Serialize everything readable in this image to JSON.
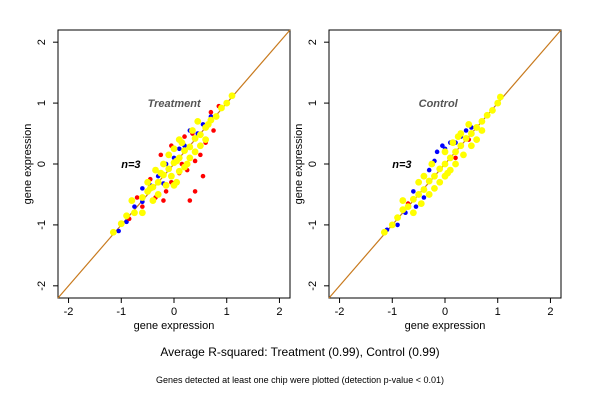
{
  "chart_data": [
    {
      "type": "scatter",
      "title": "Treatment",
      "annotation": "n=3",
      "xlabel": "gene expression",
      "ylabel": "gene expression",
      "xlim": [
        -2.2,
        2.2
      ],
      "ylim": [
        -2.2,
        2.2
      ],
      "xticks": [
        -2,
        -1,
        0,
        1,
        2
      ],
      "yticks": [
        -2,
        -1,
        0,
        1,
        2
      ],
      "reference_line": {
        "slope": 1,
        "intercept": 0,
        "color": "#c87a1e"
      },
      "series": [
        {
          "color": "#0000ff",
          "points": [
            [
              -1.05,
              -1.1
            ],
            [
              -0.9,
              -0.95
            ],
            [
              -0.75,
              -0.7
            ],
            [
              -0.6,
              -0.62
            ],
            [
              -0.45,
              -0.35
            ],
            [
              -0.3,
              -0.2
            ],
            [
              -0.2,
              -0.32
            ],
            [
              0.0,
              0.1
            ],
            [
              0.1,
              0.25
            ],
            [
              0.3,
              0.55
            ],
            [
              0.45,
              0.5
            ],
            [
              0.55,
              0.65
            ],
            [
              0.7,
              0.78
            ],
            [
              -0.6,
              -0.4
            ],
            [
              -0.15,
              0.0
            ],
            [
              0.2,
              0.3
            ]
          ]
        },
        {
          "color": "#ff0000",
          "points": [
            [
              -0.85,
              -0.9
            ],
            [
              -0.6,
              -0.7
            ],
            [
              -0.35,
              -0.55
            ],
            [
              -0.2,
              -0.6
            ],
            [
              -0.05,
              -0.3
            ],
            [
              0.1,
              -0.15
            ],
            [
              0.25,
              -0.1
            ],
            [
              0.4,
              0.05
            ],
            [
              0.5,
              0.15
            ],
            [
              0.55,
              -0.2
            ],
            [
              0.4,
              -0.45
            ],
            [
              0.2,
              0.45
            ],
            [
              -0.05,
              0.3
            ],
            [
              -0.25,
              0.15
            ],
            [
              0.7,
              0.85
            ],
            [
              0.85,
              0.95
            ],
            [
              0.6,
              0.35
            ],
            [
              -0.45,
              -0.25
            ],
            [
              0.3,
              -0.6
            ],
            [
              -0.7,
              -0.55
            ],
            [
              0.75,
              0.55
            ],
            [
              0.35,
              0.5
            ],
            [
              -0.15,
              -0.45
            ],
            [
              0.15,
              0.0
            ]
          ]
        },
        {
          "color": "#ffff00",
          "points": [
            [
              -1.15,
              -1.12
            ],
            [
              -1.0,
              -0.98
            ],
            [
              -0.9,
              -0.85
            ],
            [
              -0.75,
              -0.8
            ],
            [
              -0.6,
              -0.55
            ],
            [
              -0.5,
              -0.45
            ],
            [
              -0.4,
              -0.38
            ],
            [
              -0.3,
              -0.3
            ],
            [
              -0.2,
              -0.18
            ],
            [
              -0.1,
              -0.08
            ],
            [
              0.0,
              0.02
            ],
            [
              0.1,
              0.1
            ],
            [
              0.2,
              0.22
            ],
            [
              0.3,
              0.28
            ],
            [
              0.4,
              0.42
            ],
            [
              0.5,
              0.48
            ],
            [
              0.6,
              0.6
            ],
            [
              0.7,
              0.72
            ],
            [
              0.8,
              0.78
            ],
            [
              0.9,
              0.92
            ],
            [
              1.0,
              1.0
            ],
            [
              1.1,
              1.12
            ],
            [
              -0.5,
              -0.3
            ],
            [
              -0.3,
              -0.5
            ],
            [
              -0.1,
              0.15
            ],
            [
              0.1,
              -0.12
            ],
            [
              0.3,
              0.1
            ],
            [
              0.15,
              0.35
            ],
            [
              0.5,
              0.3
            ],
            [
              0.35,
              0.55
            ],
            [
              -0.15,
              -0.35
            ],
            [
              -0.35,
              -0.1
            ],
            [
              0.05,
              -0.3
            ],
            [
              0.0,
              -0.35
            ],
            [
              -0.2,
              0.0
            ],
            [
              0.25,
              0.0
            ],
            [
              0.4,
              0.2
            ],
            [
              -0.6,
              -0.8
            ],
            [
              -0.8,
              -0.6
            ],
            [
              0.0,
              0.25
            ],
            [
              0.6,
              0.4
            ],
            [
              0.45,
              0.7
            ],
            [
              -0.4,
              -0.6
            ],
            [
              0.1,
              0.4
            ],
            [
              -0.05,
              -0.2
            ],
            [
              0.2,
              -0.05
            ],
            [
              0.05,
              0.05
            ],
            [
              -0.25,
              -0.15
            ],
            [
              -0.45,
              -0.4
            ],
            [
              0.65,
              0.65
            ]
          ]
        }
      ]
    },
    {
      "type": "scatter",
      "title": "Control",
      "annotation": "n=3",
      "xlabel": "gene expression",
      "ylabel": "gene expression",
      "xlim": [
        -2.2,
        2.2
      ],
      "ylim": [
        -2.2,
        2.2
      ],
      "xticks": [
        -2,
        -1,
        0,
        1,
        2
      ],
      "yticks": [
        -2,
        -1,
        0,
        1,
        2
      ],
      "reference_line": {
        "slope": 1,
        "intercept": 0,
        "color": "#c87a1e"
      },
      "series": [
        {
          "color": "#0000ff",
          "points": [
            [
              -1.1,
              -1.08
            ],
            [
              -0.9,
              -1.0
            ],
            [
              -0.75,
              -0.8
            ],
            [
              -0.55,
              -0.7
            ],
            [
              -0.4,
              -0.55
            ],
            [
              -0.3,
              -0.1
            ],
            [
              -0.2,
              0.05
            ],
            [
              0.0,
              0.25
            ],
            [
              0.1,
              0.35
            ],
            [
              0.3,
              0.45
            ],
            [
              -0.15,
              0.2
            ],
            [
              0.5,
              0.6
            ],
            [
              0.2,
              0.35
            ],
            [
              -0.05,
              0.3
            ],
            [
              0.4,
              0.55
            ],
            [
              -0.6,
              -0.45
            ]
          ]
        },
        {
          "color": "#ff0000",
          "points": [
            [
              -0.7,
              -0.65
            ],
            [
              0.2,
              0.1
            ],
            [
              0.45,
              0.4
            ]
          ]
        },
        {
          "color": "#ffff00",
          "points": [
            [
              -1.15,
              -1.12
            ],
            [
              -1.0,
              -1.0
            ],
            [
              -0.9,
              -0.88
            ],
            [
              -0.8,
              -0.75
            ],
            [
              -0.7,
              -0.7
            ],
            [
              -0.6,
              -0.58
            ],
            [
              -0.5,
              -0.5
            ],
            [
              -0.4,
              -0.42
            ],
            [
              -0.3,
              -0.28
            ],
            [
              -0.2,
              -0.2
            ],
            [
              -0.1,
              -0.08
            ],
            [
              0.0,
              0.0
            ],
            [
              0.1,
              0.1
            ],
            [
              0.2,
              0.2
            ],
            [
              0.3,
              0.3
            ],
            [
              0.4,
              0.42
            ],
            [
              0.5,
              0.5
            ],
            [
              0.6,
              0.6
            ],
            [
              0.7,
              0.7
            ],
            [
              0.8,
              0.8
            ],
            [
              0.9,
              0.88
            ],
            [
              1.0,
              1.0
            ],
            [
              1.05,
              1.1
            ],
            [
              -0.4,
              -0.2
            ],
            [
              -0.2,
              -0.4
            ],
            [
              0.2,
              0.0
            ],
            [
              0.0,
              0.2
            ],
            [
              0.35,
              0.15
            ],
            [
              0.15,
              0.35
            ],
            [
              -0.3,
              -0.5
            ],
            [
              -0.5,
              -0.3
            ],
            [
              0.5,
              0.3
            ],
            [
              0.3,
              0.5
            ],
            [
              -0.1,
              -0.3
            ],
            [
              0.1,
              -0.1
            ],
            [
              -0.6,
              -0.8
            ],
            [
              -0.8,
              -0.6
            ],
            [
              0.6,
              0.4
            ],
            [
              0.45,
              0.65
            ],
            [
              -0.25,
              0.0
            ],
            [
              0.05,
              -0.15
            ],
            [
              0.25,
              0.45
            ],
            [
              -0.45,
              -0.65
            ],
            [
              0.7,
              0.55
            ],
            [
              0.0,
              -0.2
            ]
          ]
        }
      ]
    }
  ],
  "caption": "Average R-squared: Treatment (0.99), Control (0.99)",
  "note": "Genes detected at least one chip were plotted (detection p-value < 0.01)"
}
